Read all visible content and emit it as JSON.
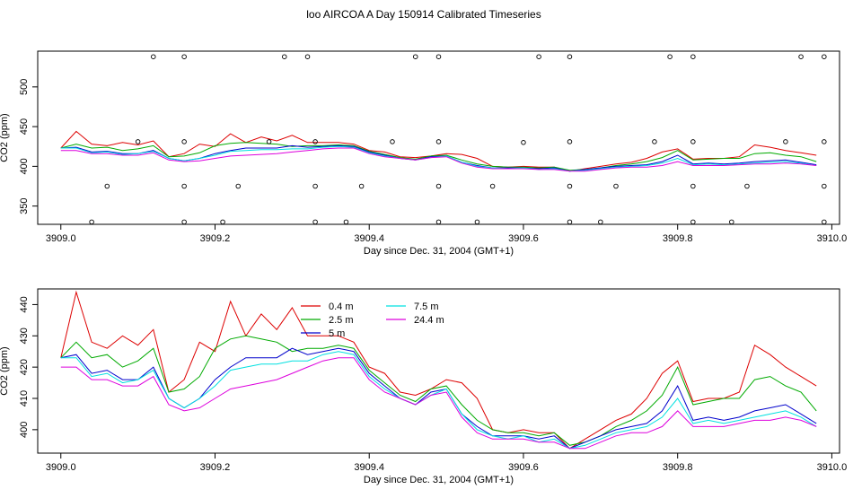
{
  "figure": {
    "title": "loo AIRCOA A  Day 150914  Calibrated Timeseries"
  },
  "colors": {
    "0.4 m": "#dd0000",
    "2.5 m": "#00aa00",
    "5 m": "#0000cc",
    "7.5 m": "#00e0e0",
    "24.4 m": "#dd00dd",
    "axis": "#000000",
    "background": "#ffffff"
  },
  "chart_data": [
    {
      "type": "line",
      "title": "",
      "xlabel": "Day since Dec. 31, 2004 (GMT+1)",
      "ylabel": "CO2 (ppm)",
      "xlim": [
        3908.97,
        3910.01
      ],
      "ylim": [
        327,
        545
      ],
      "xticks": [
        3909.0,
        3909.2,
        3909.4,
        3909.6,
        3909.8,
        3910.0
      ],
      "xtick_labels": [
        "3909.0",
        "3909.2",
        "3909.4",
        "3909.6",
        "3909.8",
        "3910.0"
      ],
      "yticks": [
        350,
        400,
        450,
        500
      ],
      "ytick_labels": [
        "350",
        "400",
        "450",
        "500"
      ],
      "grid": false,
      "legend": "none",
      "series": [
        {
          "name": "0.4 m",
          "x": [
            3909.0,
            3909.02,
            3909.04,
            3909.06,
            3909.08,
            3909.1,
            3909.12,
            3909.14,
            3909.16,
            3909.18,
            3909.2,
            3909.22,
            3909.24,
            3909.26,
            3909.28,
            3909.3,
            3909.32,
            3909.34,
            3909.36,
            3909.38,
            3909.4,
            3909.42,
            3909.44,
            3909.46,
            3909.48,
            3909.5,
            3909.52,
            3909.54,
            3909.56,
            3909.58,
            3909.6,
            3909.62,
            3909.64,
            3909.66,
            3909.68,
            3909.7,
            3909.72,
            3909.74,
            3909.76,
            3909.78,
            3909.8,
            3909.82,
            3909.84,
            3909.86,
            3909.88,
            3909.9,
            3909.92,
            3909.94,
            3909.96,
            3909.98
          ],
          "values": [
            423,
            444,
            428,
            426,
            430,
            427,
            432,
            412,
            416,
            428,
            425,
            441,
            430,
            437,
            432,
            439,
            430,
            430,
            430,
            428,
            420,
            418,
            412,
            411,
            413,
            416,
            415,
            410,
            400,
            399,
            400,
            399,
            399,
            394,
            397,
            400,
            403,
            405,
            410,
            418,
            422,
            409,
            410,
            410,
            412,
            427,
            424,
            420,
            417,
            414
          ]
        },
        {
          "name": "2.5 m",
          "x": [
            3909.0,
            3909.02,
            3909.04,
            3909.06,
            3909.08,
            3909.1,
            3909.12,
            3909.14,
            3909.16,
            3909.18,
            3909.2,
            3909.22,
            3909.24,
            3909.26,
            3909.28,
            3909.3,
            3909.32,
            3909.34,
            3909.36,
            3909.38,
            3909.4,
            3909.42,
            3909.44,
            3909.46,
            3909.48,
            3909.5,
            3909.52,
            3909.54,
            3909.56,
            3909.58,
            3909.6,
            3909.62,
            3909.64,
            3909.66,
            3909.68,
            3909.7,
            3909.72,
            3909.74,
            3909.76,
            3909.78,
            3909.8,
            3909.82,
            3909.84,
            3909.86,
            3909.88,
            3909.9,
            3909.92,
            3909.94,
            3909.96,
            3909.98
          ],
          "values": [
            423,
            428,
            423,
            424,
            420,
            422,
            426,
            412,
            413,
            417,
            426,
            429,
            430,
            429,
            428,
            425,
            426,
            426,
            427,
            426,
            419,
            415,
            411,
            409,
            413,
            414,
            408,
            403,
            400,
            399,
            399,
            398,
            399,
            395,
            396,
            398,
            401,
            403,
            406,
            411,
            420,
            408,
            409,
            410,
            410,
            416,
            417,
            414,
            412,
            406
          ]
        },
        {
          "name": "5 m",
          "x": [
            3909.0,
            3909.02,
            3909.04,
            3909.06,
            3909.08,
            3909.1,
            3909.12,
            3909.14,
            3909.16,
            3909.18,
            3909.2,
            3909.22,
            3909.24,
            3909.26,
            3909.28,
            3909.3,
            3909.32,
            3909.34,
            3909.36,
            3909.38,
            3909.4,
            3909.42,
            3909.44,
            3909.46,
            3909.48,
            3909.5,
            3909.52,
            3909.54,
            3909.56,
            3909.58,
            3909.6,
            3909.62,
            3909.64,
            3909.66,
            3909.68,
            3909.7,
            3909.72,
            3909.74,
            3909.76,
            3909.78,
            3909.8,
            3909.82,
            3909.84,
            3909.86,
            3909.88,
            3909.9,
            3909.92,
            3909.94,
            3909.96,
            3909.98
          ],
          "values": [
            423,
            424,
            418,
            419,
            416,
            416,
            420,
            410,
            407,
            410,
            416,
            420,
            423,
            423,
            423,
            426,
            424,
            425,
            426,
            425,
            418,
            414,
            410,
            408,
            412,
            413,
            405,
            401,
            398,
            398,
            398,
            397,
            398,
            394,
            396,
            398,
            400,
            401,
            402,
            406,
            414,
            403,
            404,
            403,
            404,
            406,
            407,
            408,
            405,
            402
          ]
        },
        {
          "name": "7.5 m",
          "x": [
            3909.0,
            3909.02,
            3909.04,
            3909.06,
            3909.08,
            3909.1,
            3909.12,
            3909.14,
            3909.16,
            3909.18,
            3909.2,
            3909.22,
            3909.24,
            3909.26,
            3909.28,
            3909.3,
            3909.32,
            3909.34,
            3909.36,
            3909.38,
            3909.4,
            3909.42,
            3909.44,
            3909.46,
            3909.48,
            3909.5,
            3909.52,
            3909.54,
            3909.56,
            3909.58,
            3909.6,
            3909.62,
            3909.64,
            3909.66,
            3909.68,
            3909.7,
            3909.72,
            3909.74,
            3909.76,
            3909.78,
            3909.8,
            3909.82,
            3909.84,
            3909.86,
            3909.88,
            3909.9,
            3909.92,
            3909.94,
            3909.96,
            3909.98
          ],
          "values": [
            423,
            423,
            417,
            418,
            415,
            416,
            419,
            410,
            407,
            410,
            414,
            419,
            420,
            421,
            421,
            422,
            422,
            424,
            425,
            424,
            417,
            413,
            410,
            408,
            411,
            413,
            405,
            400,
            398,
            397,
            398,
            396,
            397,
            394,
            395,
            397,
            399,
            400,
            401,
            404,
            410,
            402,
            403,
            402,
            403,
            404,
            405,
            406,
            404,
            401
          ]
        },
        {
          "name": "24.4 m",
          "x": [
            3909.0,
            3909.02,
            3909.04,
            3909.06,
            3909.08,
            3909.1,
            3909.12,
            3909.14,
            3909.16,
            3909.18,
            3909.2,
            3909.22,
            3909.24,
            3909.26,
            3909.28,
            3909.3,
            3909.32,
            3909.34,
            3909.36,
            3909.38,
            3909.4,
            3909.42,
            3909.44,
            3909.46,
            3909.48,
            3909.5,
            3909.52,
            3909.54,
            3909.56,
            3909.58,
            3909.6,
            3909.62,
            3909.64,
            3909.66,
            3909.68,
            3909.7,
            3909.72,
            3909.74,
            3909.76,
            3909.78,
            3909.8,
            3909.82,
            3909.84,
            3909.86,
            3909.88,
            3909.9,
            3909.92,
            3909.94,
            3909.96,
            3909.98
          ],
          "values": [
            420,
            420,
            416,
            416,
            414,
            414,
            417,
            408,
            406,
            407,
            410,
            413,
            414,
            415,
            416,
            418,
            420,
            422,
            423,
            423,
            416,
            412,
            410,
            408,
            411,
            412,
            404,
            399,
            397,
            397,
            397,
            396,
            396,
            394,
            394,
            396,
            398,
            399,
            399,
            401,
            406,
            401,
            401,
            401,
            402,
            403,
            403,
            404,
            403,
            401
          ]
        }
      ],
      "annotations": {
        "name": "calibration markers",
        "points": [
          {
            "x": 3909.04,
            "y": 330
          },
          {
            "x": 3909.06,
            "y": 375
          },
          {
            "x": 3909.1,
            "y": 431
          },
          {
            "x": 3909.12,
            "y": 538
          },
          {
            "x": 3909.16,
            "y": 538
          },
          {
            "x": 3909.16,
            "y": 431
          },
          {
            "x": 3909.16,
            "y": 375
          },
          {
            "x": 3909.16,
            "y": 330
          },
          {
            "x": 3909.21,
            "y": 330
          },
          {
            "x": 3909.23,
            "y": 375
          },
          {
            "x": 3909.27,
            "y": 431
          },
          {
            "x": 3909.29,
            "y": 538
          },
          {
            "x": 3909.32,
            "y": 538
          },
          {
            "x": 3909.33,
            "y": 431
          },
          {
            "x": 3909.33,
            "y": 375
          },
          {
            "x": 3909.33,
            "y": 330
          },
          {
            "x": 3909.37,
            "y": 330
          },
          {
            "x": 3909.39,
            "y": 375
          },
          {
            "x": 3909.43,
            "y": 431
          },
          {
            "x": 3909.46,
            "y": 538
          },
          {
            "x": 3909.49,
            "y": 538
          },
          {
            "x": 3909.49,
            "y": 431
          },
          {
            "x": 3909.49,
            "y": 375
          },
          {
            "x": 3909.49,
            "y": 330
          },
          {
            "x": 3909.54,
            "y": 330
          },
          {
            "x": 3909.56,
            "y": 375
          },
          {
            "x": 3909.6,
            "y": 430
          },
          {
            "x": 3909.62,
            "y": 538
          },
          {
            "x": 3909.66,
            "y": 538
          },
          {
            "x": 3909.66,
            "y": 431
          },
          {
            "x": 3909.66,
            "y": 375
          },
          {
            "x": 3909.66,
            "y": 330
          },
          {
            "x": 3909.7,
            "y": 330
          },
          {
            "x": 3909.72,
            "y": 375
          },
          {
            "x": 3909.77,
            "y": 431
          },
          {
            "x": 3909.79,
            "y": 538
          },
          {
            "x": 3909.82,
            "y": 538
          },
          {
            "x": 3909.82,
            "y": 431
          },
          {
            "x": 3909.82,
            "y": 375
          },
          {
            "x": 3909.82,
            "y": 330
          },
          {
            "x": 3909.87,
            "y": 330
          },
          {
            "x": 3909.89,
            "y": 375
          },
          {
            "x": 3909.94,
            "y": 431
          },
          {
            "x": 3909.96,
            "y": 538
          },
          {
            "x": 3909.99,
            "y": 538
          },
          {
            "x": 3909.99,
            "y": 431
          },
          {
            "x": 3909.99,
            "y": 375
          },
          {
            "x": 3909.99,
            "y": 330
          }
        ]
      }
    },
    {
      "type": "line",
      "title": "",
      "xlabel": "Day since Dec. 31, 2004 (GMT+1)",
      "ylabel": "CO2 (ppm)",
      "xlim": [
        3908.97,
        3910.01
      ],
      "ylim": [
        392.5,
        445
      ],
      "xticks": [
        3909.0,
        3909.2,
        3909.4,
        3909.6,
        3909.8,
        3910.0
      ],
      "xtick_labels": [
        "3909.0",
        "3909.2",
        "3909.4",
        "3909.6",
        "3909.8",
        "3910.0"
      ],
      "yticks": [
        400,
        410,
        420,
        430,
        440
      ],
      "ytick_labels": [
        "400",
        "410",
        "420",
        "430",
        "440"
      ],
      "grid": false,
      "legend": "top-center",
      "series_ref": "same five series as chart_data[0] (shared series data)",
      "legend_entries": [
        "0.4 m",
        "2.5 m",
        "5 m",
        "7.5 m",
        "24.4 m"
      ]
    }
  ]
}
